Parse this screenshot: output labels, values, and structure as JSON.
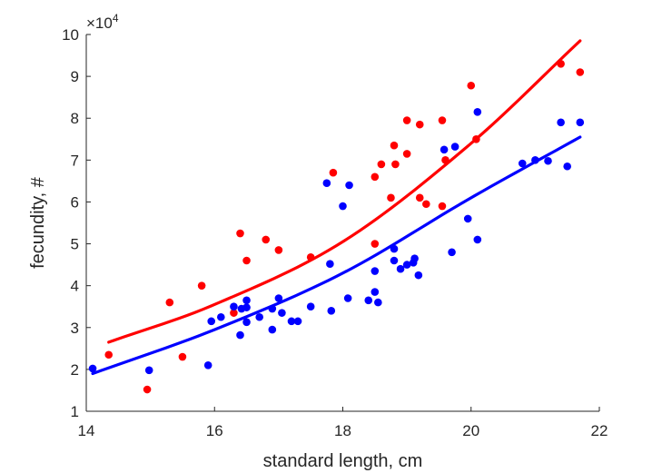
{
  "chart_data": {
    "type": "scatter",
    "xlabel": "standard length, cm",
    "ylabel": "fecundity, #",
    "exponent_label": "×10",
    "exponent_power": "4",
    "xlim": [
      14,
      22
    ],
    "ylim": [
      1,
      10
    ],
    "x_ticks": [
      14,
      16,
      18,
      20,
      22
    ],
    "y_ticks": [
      1,
      2,
      3,
      4,
      5,
      6,
      7,
      8,
      9,
      10
    ],
    "grid": false,
    "y_scale_factor": 10000,
    "series": [
      {
        "color": "#ff0000",
        "points": [
          [
            14.35,
            2.35
          ],
          [
            14.95,
            1.52
          ],
          [
            15.3,
            3.6
          ],
          [
            15.5,
            2.3
          ],
          [
            15.8,
            4.0
          ],
          [
            16.3,
            3.35
          ],
          [
            16.4,
            5.25
          ],
          [
            16.5,
            4.6
          ],
          [
            16.8,
            5.1
          ],
          [
            17.0,
            4.85
          ],
          [
            17.5,
            4.68
          ],
          [
            17.85,
            6.7
          ],
          [
            18.5,
            6.6
          ],
          [
            18.5,
            5.0
          ],
          [
            18.6,
            6.9
          ],
          [
            18.75,
            6.1
          ],
          [
            18.8,
            7.35
          ],
          [
            18.82,
            6.9
          ],
          [
            19.0,
            7.15
          ],
          [
            19.0,
            7.95
          ],
          [
            19.2,
            6.1
          ],
          [
            19.2,
            7.85
          ],
          [
            19.3,
            5.95
          ],
          [
            19.55,
            7.95
          ],
          [
            19.55,
            5.9
          ],
          [
            19.6,
            7.0
          ],
          [
            20.0,
            8.78
          ],
          [
            20.08,
            7.5
          ],
          [
            21.4,
            9.3
          ],
          [
            21.7,
            9.1
          ]
        ],
        "fit": [
          [
            14.35,
            2.65
          ],
          [
            16,
            3.55
          ],
          [
            18,
            5.05
          ],
          [
            20,
            7.4
          ],
          [
            21.7,
            9.85
          ]
        ]
      },
      {
        "color": "#0000ff",
        "points": [
          [
            14.1,
            2.02
          ],
          [
            14.98,
            1.98
          ],
          [
            15.9,
            2.1
          ],
          [
            15.95,
            3.15
          ],
          [
            16.1,
            3.25
          ],
          [
            16.3,
            3.5
          ],
          [
            16.4,
            2.82
          ],
          [
            16.42,
            3.45
          ],
          [
            16.5,
            3.65
          ],
          [
            16.5,
            3.48
          ],
          [
            16.5,
            3.13
          ],
          [
            16.7,
            3.25
          ],
          [
            16.9,
            3.45
          ],
          [
            16.9,
            2.95
          ],
          [
            17.0,
            3.7
          ],
          [
            17.05,
            3.35
          ],
          [
            17.2,
            3.15
          ],
          [
            17.3,
            3.15
          ],
          [
            17.5,
            3.5
          ],
          [
            17.75,
            6.45
          ],
          [
            17.8,
            4.52
          ],
          [
            17.82,
            3.4
          ],
          [
            18.0,
            5.9
          ],
          [
            18.08,
            3.7
          ],
          [
            18.1,
            6.4
          ],
          [
            18.4,
            3.65
          ],
          [
            18.5,
            4.35
          ],
          [
            18.5,
            3.85
          ],
          [
            18.55,
            3.6
          ],
          [
            18.8,
            4.88
          ],
          [
            18.8,
            4.6
          ],
          [
            18.9,
            4.4
          ],
          [
            19.0,
            4.5
          ],
          [
            19.1,
            4.55
          ],
          [
            19.12,
            4.65
          ],
          [
            19.18,
            4.25
          ],
          [
            19.58,
            7.25
          ],
          [
            19.7,
            4.8
          ],
          [
            19.75,
            7.32
          ],
          [
            19.95,
            5.6
          ],
          [
            20.1,
            5.1
          ],
          [
            20.1,
            8.15
          ],
          [
            20.8,
            6.92
          ],
          [
            21.0,
            7.0
          ],
          [
            21.2,
            6.98
          ],
          [
            21.4,
            7.9
          ],
          [
            21.5,
            6.85
          ],
          [
            21.7,
            7.9
          ]
        ],
        "fit": [
          [
            14.1,
            1.9
          ],
          [
            16,
            2.95
          ],
          [
            18,
            4.3
          ],
          [
            20,
            6.1
          ],
          [
            21.7,
            7.55
          ]
        ]
      }
    ]
  }
}
